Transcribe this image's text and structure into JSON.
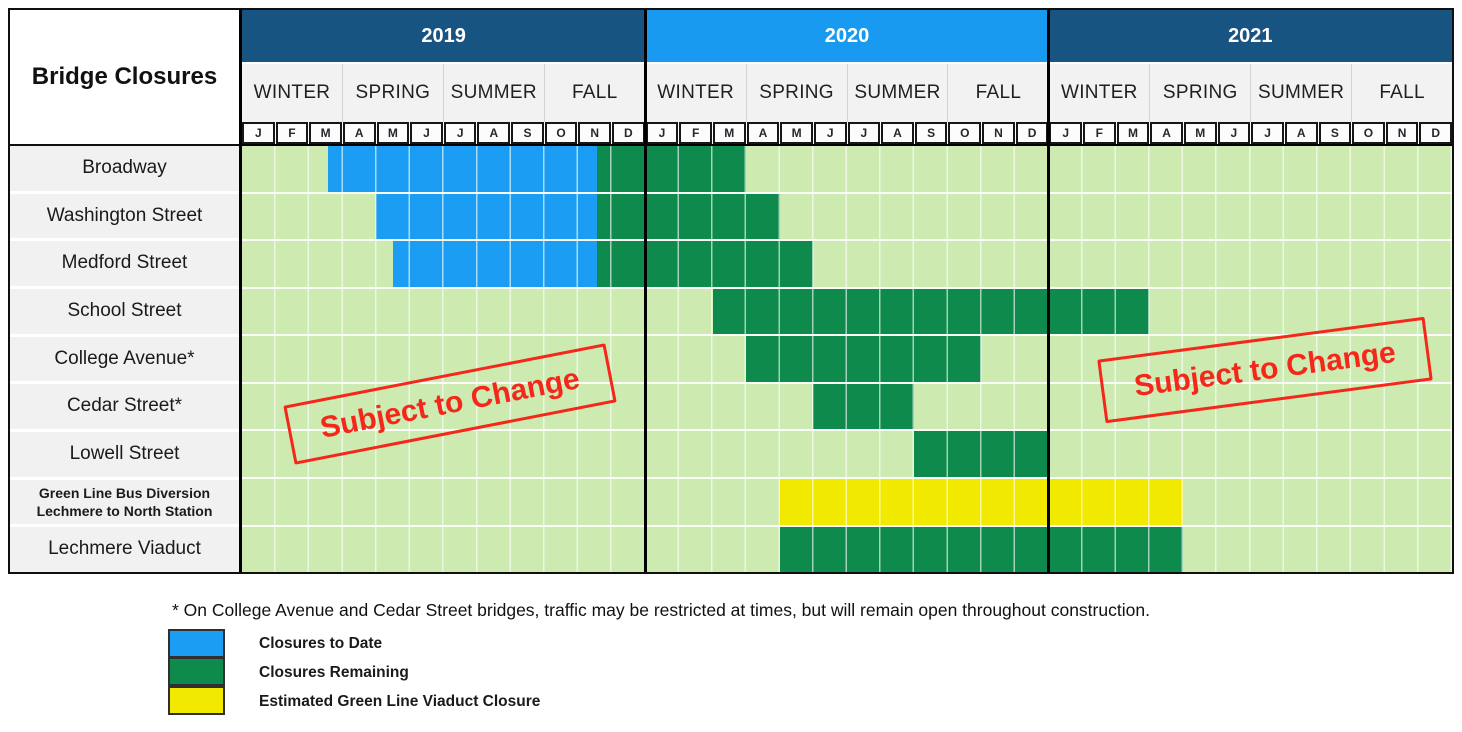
{
  "title": "Bridge Closures",
  "stamp_text": "Subject to Change",
  "footnote": "* On College Avenue and Cedar Street bridges, traffic may be restricted at times, but will remain open throughout construction.",
  "years": [
    {
      "label": "2019",
      "color": "#175482"
    },
    {
      "label": "2020",
      "color": "#189af0"
    },
    {
      "label": "2021",
      "color": "#175482"
    }
  ],
  "seasons": [
    "WINTER",
    "SPRING",
    "SUMMER",
    "FALL"
  ],
  "month_letters": [
    "J",
    "F",
    "M",
    "A",
    "M",
    "J",
    "J",
    "A",
    "S",
    "O",
    "N",
    "D"
  ],
  "colors": {
    "closures_to_date": "#1b9df3",
    "closures_remaining": "#0e8a4c",
    "glx_viaduct_estimate": "#f2e900",
    "timeline_background": "#cdeab1",
    "year_navy": "#175482",
    "year_azure": "#189af0",
    "stamp_red": "#f5271b"
  },
  "legend": [
    {
      "kind": "closures_to_date",
      "label": "Closures to Date",
      "color": "#1b9df3"
    },
    {
      "kind": "closures_remaining",
      "label": "Closures Remaining",
      "color": "#0e8a4c"
    },
    {
      "kind": "glx_viaduct_estimate",
      "label": "Estimated Green Line Viaduct Closure",
      "color": "#f2e900"
    }
  ],
  "chart_data": {
    "type": "gantt-timeline",
    "title": "Bridge Closures",
    "time_axis": {
      "start": "2019-01",
      "end": "2021-12",
      "unit": "month",
      "months_total": 36,
      "note": "segment start/end are month indices from Jan 2019 = 0; fractions = partial month"
    },
    "rows": [
      {
        "label": [
          "Broadway"
        ],
        "segments": [
          {
            "kind": "closures_to_date",
            "start": 2.55,
            "end": 10.55,
            "from": "mid-Mar 2019",
            "to": "mid-Nov 2019"
          },
          {
            "kind": "closures_remaining",
            "start": 10.55,
            "end": 15,
            "from": "mid-Nov 2019",
            "to": "end Mar 2020"
          }
        ]
      },
      {
        "label": [
          "Washington Street"
        ],
        "segments": [
          {
            "kind": "closures_to_date",
            "start": 4,
            "end": 10.55,
            "from": "May 2019",
            "to": "mid-Nov 2019"
          },
          {
            "kind": "closures_remaining",
            "start": 10.55,
            "end": 16,
            "from": "mid-Nov 2019",
            "to": "end Apr 2020"
          }
        ]
      },
      {
        "label": [
          "Medford Street"
        ],
        "segments": [
          {
            "kind": "closures_to_date",
            "start": 4.5,
            "end": 10.55,
            "from": "mid-May 2019",
            "to": "mid-Nov 2019"
          },
          {
            "kind": "closures_remaining",
            "start": 10.55,
            "end": 17,
            "from": "mid-Nov 2019",
            "to": "end May 2020"
          }
        ]
      },
      {
        "label": [
          "School Street"
        ],
        "segments": [
          {
            "kind": "closures_remaining",
            "start": 14,
            "end": 27,
            "from": "Mar 2020",
            "to": "end Mar 2021"
          }
        ]
      },
      {
        "label": [
          "College Avenue*"
        ],
        "segments": [
          {
            "kind": "closures_remaining",
            "start": 15,
            "end": 22,
            "from": "Apr 2020",
            "to": "end Oct 2020"
          }
        ]
      },
      {
        "label": [
          "Cedar Street*"
        ],
        "segments": [
          {
            "kind": "closures_remaining",
            "start": 17,
            "end": 20,
            "from": "Jun 2020",
            "to": "end Aug 2020"
          }
        ]
      },
      {
        "label": [
          "Lowell Street"
        ],
        "segments": [
          {
            "kind": "closures_remaining",
            "start": 20,
            "end": 24,
            "from": "Sep 2020",
            "to": "end Dec 2020"
          }
        ]
      },
      {
        "label": [
          "Green Line Bus Diversion",
          "Lechmere to North Station"
        ],
        "small_bold": true,
        "segments": [
          {
            "kind": "glx_viaduct_estimate",
            "start": 16,
            "end": 28,
            "from": "May 2020",
            "to": "end Apr 2021"
          }
        ]
      },
      {
        "label": [
          "Lechmere Viaduct"
        ],
        "segments": [
          {
            "kind": "closures_remaining",
            "start": 16,
            "end": 28,
            "from": "May 2020",
            "to": "end Apr 2021"
          }
        ]
      }
    ]
  }
}
